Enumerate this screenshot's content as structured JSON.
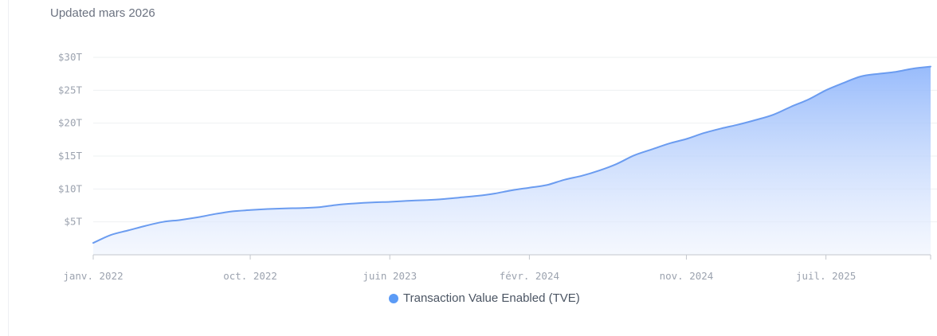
{
  "header": {
    "updated_text": "Updated mars 2026"
  },
  "colors": {
    "line": "#6b9cf0",
    "area_top": "#93b8fb",
    "area_bottom": "#eef3fe",
    "grid": "#eef0f2",
    "axis": "#c3c7cd",
    "legend_dot": "#5b9bf6"
  },
  "chart_data": {
    "type": "area",
    "title": "",
    "xlabel": "",
    "ylabel": "",
    "ylim": [
      0,
      30
    ],
    "y_ticks": [
      {
        "value": 5,
        "label": "$5T"
      },
      {
        "value": 10,
        "label": "$10T"
      },
      {
        "value": 15,
        "label": "$15T"
      },
      {
        "value": 20,
        "label": "$20T"
      },
      {
        "value": 25,
        "label": "$25T"
      },
      {
        "value": 30,
        "label": "$30T"
      }
    ],
    "x_ticks": [
      {
        "x": "2022-01",
        "label": "janv. 2022"
      },
      {
        "x": "2022-10",
        "label": "oct. 2022"
      },
      {
        "x": "2023-06",
        "label": "juin 2023"
      },
      {
        "x": "2024-02",
        "label": "févr. 2024"
      },
      {
        "x": "2024-11",
        "label": "nov. 2024"
      },
      {
        "x": "2025-07",
        "label": "juil. 2025"
      }
    ],
    "x_range": [
      "2022-01",
      "2026-01"
    ],
    "legend_position": "bottom",
    "grid": true,
    "series": [
      {
        "name": "Transaction Value Enabled (TVE)",
        "x": [
          "2022-01",
          "2022-02",
          "2022-03",
          "2022-04",
          "2022-05",
          "2022-06",
          "2022-07",
          "2022-08",
          "2022-09",
          "2022-10",
          "2022-11",
          "2022-12",
          "2023-01",
          "2023-02",
          "2023-03",
          "2023-04",
          "2023-05",
          "2023-06",
          "2023-07",
          "2023-08",
          "2023-09",
          "2023-10",
          "2023-11",
          "2023-12",
          "2024-01",
          "2024-02",
          "2024-03",
          "2024-04",
          "2024-05",
          "2024-06",
          "2024-07",
          "2024-08",
          "2024-09",
          "2024-10",
          "2024-11",
          "2024-12",
          "2025-01",
          "2025-02",
          "2025-03",
          "2025-04",
          "2025-05",
          "2025-06",
          "2025-07",
          "2025-08",
          "2025-09",
          "2025-10",
          "2025-11",
          "2025-12",
          "2026-01"
        ],
        "values": [
          1.8,
          3.0,
          3.7,
          4.4,
          5.0,
          5.3,
          5.7,
          6.2,
          6.6,
          6.8,
          6.95,
          7.05,
          7.1,
          7.25,
          7.6,
          7.8,
          7.95,
          8.05,
          8.2,
          8.3,
          8.45,
          8.7,
          8.95,
          9.3,
          9.8,
          10.2,
          10.6,
          11.4,
          12.0,
          12.8,
          13.8,
          15.1,
          16.0,
          16.9,
          17.6,
          18.5,
          19.2,
          19.8,
          20.5,
          21.3,
          22.5,
          23.6,
          25.0,
          26.1,
          27.1,
          27.5,
          27.8,
          28.3,
          28.6
        ]
      }
    ]
  }
}
